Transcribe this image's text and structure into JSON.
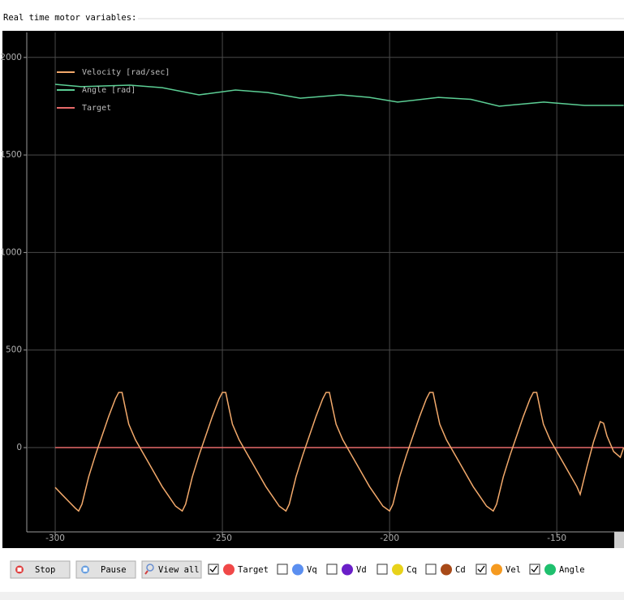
{
  "header": {
    "title": "Real time motor variables:"
  },
  "chart_data": {
    "type": "line",
    "legend": "upper left",
    "grid": true,
    "xlim": [
      -308.5,
      -129.9
    ],
    "ylim": [
      -432,
      2128
    ],
    "xticks": [
      -300,
      -250,
      -200,
      -150
    ],
    "yticks": [
      0,
      500,
      1000,
      1500,
      2000
    ],
    "series": [
      {
        "name": "Velocity [rad/sec]",
        "color": "#f2a96b",
        "x": [
          -300,
          -298,
          -296,
          -294,
          -293,
          -292,
          -290,
          -288,
          -286,
          -284,
          -282,
          -281,
          -280,
          -279,
          -278,
          -276,
          -274,
          -272,
          -270,
          -268,
          -266,
          -264,
          -262,
          -261,
          -259,
          -257,
          -255,
          -253,
          -251,
          -250,
          -249,
          -248,
          -247,
          -245,
          -243,
          -241,
          -239,
          -237,
          -235,
          -233,
          -231,
          -230,
          -228,
          -226,
          -224,
          -222,
          -220,
          -219,
          -218,
          -217,
          -216,
          -214,
          -212,
          -210,
          -208,
          -206,
          -204,
          -202,
          -200,
          -199,
          -197,
          -195,
          -193,
          -191,
          -189,
          -188,
          -187,
          -186,
          -185,
          -183,
          -181,
          -179,
          -177,
          -175,
          -173,
          -171,
          -169,
          -168,
          -166,
          -164,
          -162,
          -160,
          -158,
          -157,
          -156,
          -155,
          -154,
          -152,
          -150,
          -148,
          -146,
          -144,
          -143,
          -141,
          -139,
          -137,
          -136,
          -135,
          -133,
          -131,
          -130
        ],
        "values": [
          -204,
          -240,
          -275,
          -310,
          -325,
          -290,
          -150,
          -40,
          60,
          160,
          250,
          283,
          283,
          200,
          120,
          40,
          -20,
          -80,
          -140,
          -200,
          -250,
          -300,
          -325,
          -290,
          -150,
          -40,
          60,
          160,
          250,
          283,
          283,
          200,
          120,
          40,
          -20,
          -80,
          -140,
          -200,
          -250,
          -300,
          -325,
          -290,
          -150,
          -40,
          60,
          160,
          250,
          283,
          283,
          200,
          120,
          40,
          -20,
          -80,
          -140,
          -200,
          -250,
          -300,
          -325,
          -290,
          -150,
          -40,
          60,
          160,
          250,
          283,
          283,
          200,
          120,
          40,
          -20,
          -80,
          -140,
          -200,
          -250,
          -300,
          -325,
          -290,
          -150,
          -40,
          60,
          160,
          250,
          283,
          283,
          200,
          120,
          40,
          -20,
          -80,
          -140,
          -200,
          -240,
          -100,
          30,
          133,
          125,
          60,
          -20,
          -50,
          0
        ]
      },
      {
        "name": "Angle [rad]",
        "color": "#5ccf95",
        "x": [
          -300,
          -292.2,
          -277.7,
          -268,
          -257,
          -246.1,
          -236.4,
          -226.7,
          -214.6,
          -206,
          -197.6,
          -185.4,
          -175.7,
          -167.2,
          -153.9,
          -141.7,
          -130
        ],
        "values": [
          1862,
          1850,
          1858,
          1845,
          1808,
          1833,
          1820,
          1791,
          1808,
          1795,
          1771,
          1795,
          1785,
          1750,
          1771,
          1754,
          1754
        ]
      },
      {
        "name": "Target",
        "color": "#e86a6a",
        "x": [
          -300,
          -130
        ],
        "values": [
          0,
          0
        ]
      }
    ]
  },
  "buttons": [
    "Stop",
    "Pause",
    "View all"
  ],
  "checkboxes": [
    {
      "label": "Target",
      "checked": true,
      "color": "#f04848"
    },
    {
      "label": "Vq",
      "checked": false,
      "color": "#5b8ff0"
    },
    {
      "label": "Vd",
      "checked": false,
      "color": "#6a1fc8"
    },
    {
      "label": "Cq",
      "checked": false,
      "color": "#e8d21a"
    },
    {
      "label": "Cd",
      "checked": false,
      "color": "#a84a18"
    },
    {
      "label": "Vel",
      "checked": true,
      "color": "#f59a20"
    },
    {
      "label": "Angle",
      "checked": true,
      "color": "#1fc06e"
    }
  ]
}
